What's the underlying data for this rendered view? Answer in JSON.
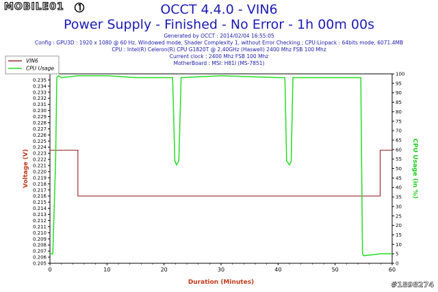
{
  "header": {
    "logo_text": "MOBILE01",
    "title": "OCCT 4.4.0 - VIN6",
    "subtitle": "Power Supply - Finished - No Error - 1h 00m 00s",
    "generated": "Generated by OCCT : 2014/02/04 16:55:05",
    "config": "Config : GPU3D : 1920 x 1080 @ 60 Hz, Windowed mode, Shader Complexity 1, without Error Checking ; CPU:Linpack : 64bits mode, 6071.4MB",
    "cpu": "CPU : Intel(R) Celeron(R) CPU G1820T @ 2.40GHz (Haswell) 2400 Mhz FSB 100 Mhz",
    "clock": "Current clock : 2400 Mhz FSB 100 Mhz",
    "motherboard": "MotherBoard : MSI: H81I (MS-7851)"
  },
  "watermark": "#1898274",
  "chart_data": {
    "type": "line",
    "xlabel": "Duration (Minutes)",
    "ylabel": "Voltage (V)",
    "y2label": "CPU Usage (in %)",
    "xlim": [
      0,
      60
    ],
    "ylim": [
      0.205,
      0.236
    ],
    "y2lim": [
      0,
      100
    ],
    "x_ticks": [
      0,
      10,
      20,
      30,
      40,
      50,
      60
    ],
    "y_ticks": [
      0.205,
      0.206,
      0.207,
      0.208,
      0.209,
      0.21,
      0.211,
      0.212,
      0.213,
      0.214,
      0.215,
      0.216,
      0.217,
      0.218,
      0.219,
      0.22,
      0.221,
      0.222,
      0.223,
      0.224,
      0.225,
      0.226,
      0.227,
      0.228,
      0.229,
      0.23,
      0.231,
      0.232,
      0.233,
      0.234,
      0.235
    ],
    "y_tick_labels": [
      "0.205",
      "0.206",
      "0.207",
      "0.208",
      "0.209",
      "0.210",
      "0.211",
      "0.212",
      "0.213",
      "0.214",
      "0.215",
      "0.216",
      "0.217",
      "0.218",
      "0.219",
      "0.220",
      "0.221",
      "0.222",
      "0.223",
      "0.224",
      "0.225",
      "0.226",
      "0.227",
      "0.228",
      "0.229",
      "0.230",
      "0.231",
      "0.232",
      "0.233",
      "0.234",
      "0.235"
    ],
    "y2_ticks": [
      0,
      5,
      10,
      15,
      20,
      25,
      30,
      35,
      40,
      45,
      50,
      55,
      60,
      65,
      70,
      75,
      80,
      85,
      90,
      95,
      100
    ],
    "grid": false,
    "legend_placement": "top-left",
    "series": [
      {
        "name": "VIN6",
        "axis": "left",
        "color": "#9b2b2b",
        "x": [
          0,
          4.9,
          4.9,
          57.9,
          57.9,
          60
        ],
        "y": [
          0.2235,
          0.2235,
          0.216,
          0.216,
          0.2235,
          0.2235
        ]
      },
      {
        "name": "CPU Usage",
        "axis": "right",
        "color": "#22dd22",
        "x": [
          0,
          0.5,
          1.0,
          1.2,
          1.5,
          2.0,
          5.0,
          10.0,
          15.0,
          21.5,
          21.9,
          22.2,
          22.6,
          23.0,
          30.0,
          40.0,
          41.2,
          41.5,
          42.0,
          42.3,
          42.6,
          50.0,
          54.5,
          54.8,
          55.0,
          58.0,
          60.0
        ],
        "y": [
          5,
          5,
          55,
          98,
          99,
          98,
          99,
          99,
          98,
          98,
          54,
          52,
          54,
          98,
          99,
          98,
          98,
          54,
          52,
          54,
          98,
          98,
          98,
          5,
          4,
          5,
          5
        ]
      }
    ]
  }
}
